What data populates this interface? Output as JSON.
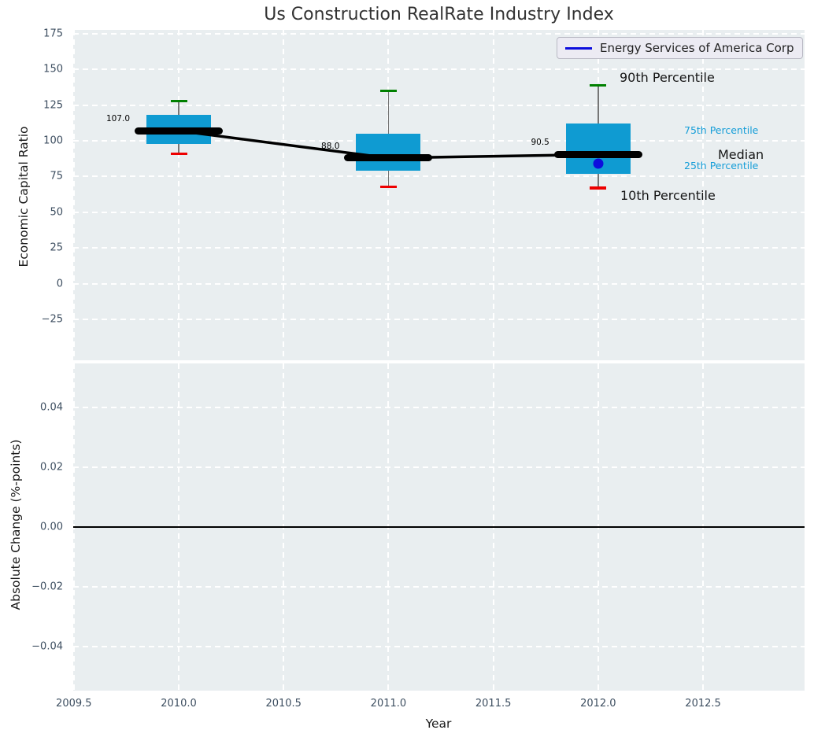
{
  "title": "Us Construction RealRate Industry Index",
  "legend": {
    "series_label": "Energy Services of America Corp"
  },
  "axes": {
    "top": {
      "ylabel": "Economic Capital Ratio",
      "yticks": [
        {
          "label": "175",
          "v": 175
        },
        {
          "label": "150",
          "v": 150
        },
        {
          "label": "125",
          "v": 125
        },
        {
          "label": "100",
          "v": 100
        },
        {
          "label": "75",
          "v": 75
        },
        {
          "label": "50",
          "v": 50
        },
        {
          "label": "25",
          "v": 25
        },
        {
          "label": "0",
          "v": 0
        },
        {
          "label": "−25",
          "v": -25
        }
      ],
      "ylim": [
        -53.66,
        177.75
      ]
    },
    "bottom": {
      "ylabel": "Absolute Change (%-points)",
      "yticks": [
        {
          "label": "0.04",
          "v": 0.04
        },
        {
          "label": "0.02",
          "v": 0.02
        },
        {
          "label": "0.00",
          "v": 0.0
        },
        {
          "label": "−0.02",
          "v": -0.02
        },
        {
          "label": "−0.04",
          "v": -0.04
        }
      ],
      "ylim": [
        -0.0547,
        0.0547
      ],
      "zero_line": 0.0
    },
    "x": {
      "xlabel": "Year",
      "xticks": [
        {
          "label": "2009.5",
          "v": 2009.5
        },
        {
          "label": "2010.0",
          "v": 2010.0
        },
        {
          "label": "2010.5",
          "v": 2010.5
        },
        {
          "label": "2011.0",
          "v": 2011.0
        },
        {
          "label": "2011.5",
          "v": 2011.5
        },
        {
          "label": "2012.0",
          "v": 2012.0
        },
        {
          "label": "2012.5",
          "v": 2012.5
        }
      ],
      "xlim": [
        2009.497,
        2012.984
      ]
    }
  },
  "percentile_labels": {
    "p90": "90th Percentile",
    "p75": "75th Percentile",
    "median": "Median",
    "p25": "25th Percentile",
    "p10": "10th Percentile"
  },
  "chart_data": {
    "type": "boxplot",
    "title": "Us Construction RealRate Industry Index",
    "xlabel": "Year",
    "ylabel": "Economic Capital Ratio",
    "ylabel_secondary": "Absolute Change (%-points)",
    "x": [
      2010,
      2011,
      2012
    ],
    "boxes": [
      {
        "year": 2010,
        "p10": 91,
        "p25": 98,
        "median": 107.0,
        "p75": 118,
        "p90": 128,
        "label": "107.0"
      },
      {
        "year": 2011,
        "p10": 68,
        "p25": 79,
        "median": 88.0,
        "p75": 105,
        "p90": 135,
        "label": "88.0"
      },
      {
        "year": 2012,
        "p10": 67,
        "p25": 77,
        "median": 90.5,
        "p75": 112,
        "p90": 139,
        "label": "90.5"
      }
    ],
    "median_trend": [
      107.0,
      88.0,
      90.5
    ],
    "company_series": {
      "name": "Energy Services of America Corp",
      "points": [
        {
          "year": 2012,
          "value": 84
        }
      ]
    },
    "bottom_panel_series": [],
    "grid": "white dashed",
    "legend_position": "upper right"
  },
  "colors": {
    "box_fill": "#0f9bd2",
    "cap_top": "#008000",
    "cap_bottom": "#ee0000",
    "median": "#000000",
    "company": "#0d0ddd",
    "blue_label": "#149dd8",
    "panel_bg": "#e9eef0",
    "tick_label": "#3d4e60"
  }
}
